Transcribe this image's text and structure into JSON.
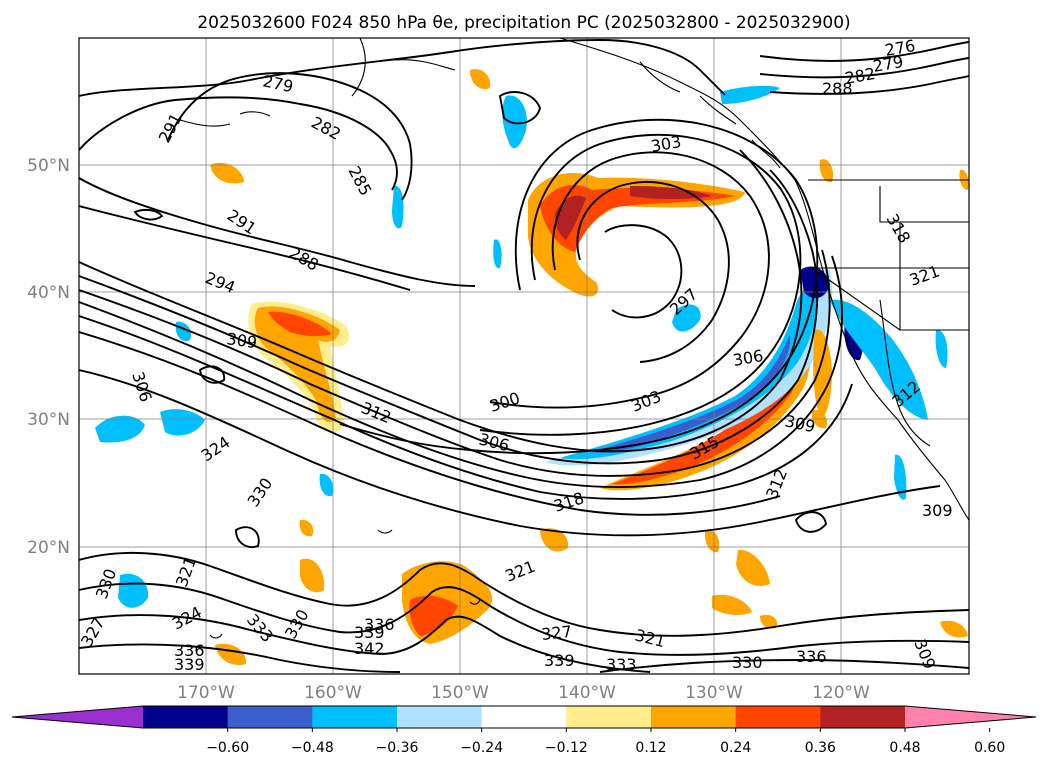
{
  "title": "2025032600 F024 850 hPa θe, precipitation PC (2025032800 - 2025032900)",
  "lat_labels": [
    "50°N",
    "40°N",
    "30°N",
    "20°N"
  ],
  "lon_labels": [
    "170°W",
    "160°W",
    "150°W",
    "140°W",
    "130°W",
    "120°W"
  ],
  "colorbar": {
    "ticks": [
      "−0.60",
      "−0.48",
      "−0.36",
      "−0.24",
      "−0.12",
      "0.12",
      "0.24",
      "0.36",
      "0.48",
      "0.60"
    ],
    "colors": [
      "#9b30d0",
      "#00008b",
      "#3a5fcd",
      "#00bfff",
      "#b0e2ff",
      "#ffffff",
      "#ffec8b",
      "#ffa500",
      "#ff4500",
      "#b22222",
      "#ff82ab"
    ]
  },
  "contour_labels": [
    "279",
    "282",
    "285",
    "288",
    "291",
    "291",
    "294",
    "297",
    "300",
    "303",
    "303",
    "306",
    "306",
    "306",
    "309",
    "309",
    "309",
    "312",
    "312",
    "315",
    "318",
    "318",
    "321",
    "321",
    "321",
    "324",
    "324",
    "327",
    "330",
    "330",
    "330",
    "333",
    "336",
    "336",
    "339",
    "339",
    "342",
    "276",
    "279",
    "282",
    "288",
    "327",
    "330",
    "333",
    "336",
    "339",
    "321",
    "312",
    "309"
  ],
  "colors": {
    "contour": "#000000",
    "grid": "#808080"
  }
}
